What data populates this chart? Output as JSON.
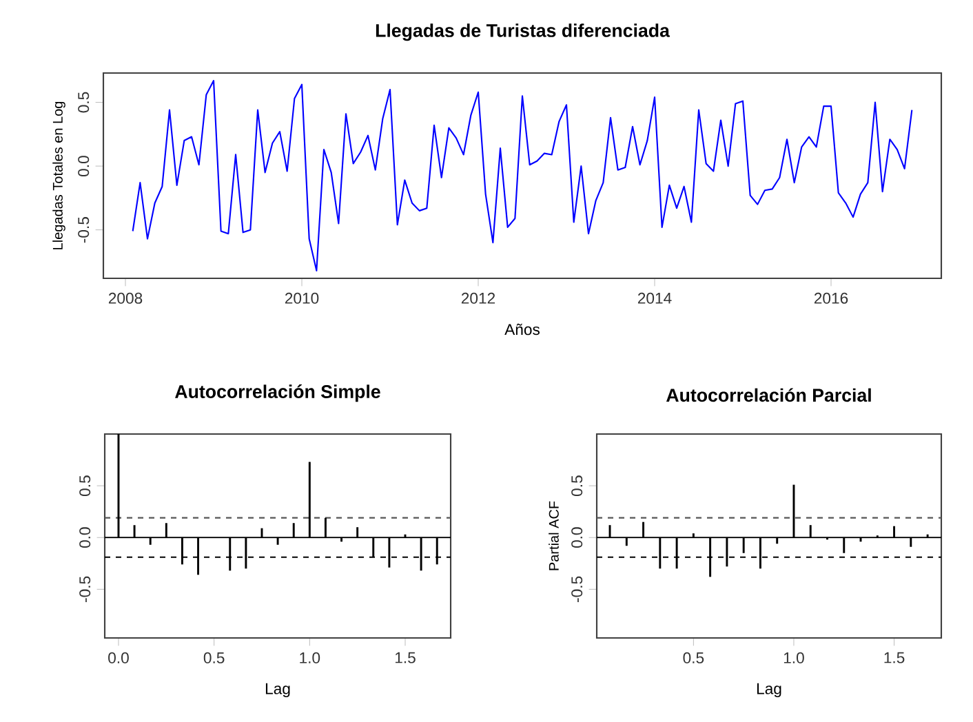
{
  "chart_data": [
    {
      "type": "line",
      "title": "Llegadas de Turistas diferenciada",
      "xlabel": "Años",
      "ylabel": "Llegadas Totales en Log",
      "color": "#0000ff",
      "x": [
        "2008-02",
        "2008-03",
        "2008-04",
        "2008-05",
        "2008-06",
        "2008-07",
        "2008-08",
        "2008-09",
        "2008-10",
        "2008-11",
        "2008-12",
        "2009-01",
        "2009-02",
        "2009-03",
        "2009-04",
        "2009-05",
        "2009-06",
        "2009-07",
        "2009-08",
        "2009-09",
        "2009-10",
        "2009-11",
        "2009-12",
        "2010-01",
        "2010-02",
        "2010-03",
        "2010-04",
        "2010-05",
        "2010-06",
        "2010-07",
        "2010-08",
        "2010-09",
        "2010-10",
        "2010-11",
        "2010-12",
        "2011-01",
        "2011-02",
        "2011-03",
        "2011-04",
        "2011-05",
        "2011-06",
        "2011-07",
        "2011-08",
        "2011-09",
        "2011-10",
        "2011-11",
        "2011-12",
        "2012-01",
        "2012-02",
        "2012-03",
        "2012-04",
        "2012-05",
        "2012-06",
        "2012-07",
        "2012-08",
        "2012-09",
        "2012-10",
        "2012-11",
        "2012-12",
        "2013-01",
        "2013-02",
        "2013-03",
        "2013-04",
        "2013-05",
        "2013-06",
        "2013-07",
        "2013-08",
        "2013-09",
        "2013-10",
        "2013-11",
        "2013-12",
        "2014-01",
        "2014-02",
        "2014-03",
        "2014-04",
        "2014-05",
        "2014-06",
        "2014-07",
        "2014-08",
        "2014-09",
        "2014-10",
        "2014-11",
        "2014-12",
        "2015-01",
        "2015-02",
        "2015-03",
        "2015-04",
        "2015-05",
        "2015-06",
        "2015-07",
        "2015-08",
        "2015-09",
        "2015-10",
        "2015-11",
        "2015-12",
        "2016-01",
        "2016-02",
        "2016-03",
        "2016-04",
        "2016-05",
        "2016-06",
        "2016-07",
        "2016-08",
        "2016-09",
        "2016-10",
        "2016-11",
        "2016-12"
      ],
      "values": [
        -0.51,
        -0.13,
        -0.57,
        -0.29,
        -0.16,
        0.44,
        -0.15,
        0.2,
        0.23,
        0.01,
        0.56,
        0.67,
        -0.51,
        -0.53,
        0.09,
        -0.52,
        -0.5,
        0.44,
        -0.05,
        0.18,
        0.27,
        -0.04,
        0.53,
        0.64,
        -0.57,
        -0.82,
        0.13,
        -0.05,
        -0.45,
        0.41,
        0.02,
        0.11,
        0.24,
        -0.03,
        0.37,
        0.6,
        -0.46,
        -0.11,
        -0.29,
        -0.35,
        -0.33,
        0.32,
        -0.09,
        0.3,
        0.22,
        0.09,
        0.4,
        0.58,
        -0.22,
        -0.6,
        0.14,
        -0.48,
        -0.41,
        0.55,
        0.01,
        0.04,
        0.1,
        0.09,
        0.35,
        0.48,
        -0.44,
        0.0,
        -0.53,
        -0.27,
        -0.13,
        0.38,
        -0.03,
        -0.01,
        0.31,
        0.01,
        0.2,
        0.54,
        -0.48,
        -0.15,
        -0.33,
        -0.16,
        -0.44,
        0.44,
        0.02,
        -0.04,
        0.36,
        0.0,
        0.49,
        0.51,
        -0.23,
        -0.3,
        -0.19,
        -0.18,
        -0.09,
        0.21,
        -0.13,
        0.15,
        0.23,
        0.15,
        0.47,
        0.47,
        -0.21,
        -0.29,
        -0.4,
        -0.22,
        -0.13,
        0.5,
        -0.2,
        0.21,
        0.13,
        -0.02,
        0.44
      ],
      "xlim": [
        "2007-10",
        "2017-04"
      ],
      "xticks": [
        "2008",
        "2010",
        "2012",
        "2014",
        "2016"
      ],
      "ylim": [
        -0.88,
        0.73
      ],
      "yticks": [
        {
          "value": -0.5,
          "label": "-0.5"
        },
        {
          "value": 0,
          "label": "0.0"
        },
        {
          "value": 0.5,
          "label": "0.5"
        }
      ]
    },
    {
      "type": "bar",
      "title": "Autocorrelación Simple",
      "xlabel": "Lag",
      "color": "#000000",
      "x": [
        0,
        0.0833,
        0.1667,
        0.25,
        0.3333,
        0.4167,
        0.5,
        0.5833,
        0.6667,
        0.75,
        0.8333,
        0.9167,
        1,
        1.0833,
        1.1667,
        1.25,
        1.3333,
        1.4167,
        1.5,
        1.5833,
        1.6667
      ],
      "values": [
        1.0,
        0.12,
        -0.07,
        0.14,
        -0.26,
        -0.36,
        0.0,
        -0.32,
        -0.3,
        0.09,
        -0.07,
        0.14,
        0.73,
        0.19,
        -0.04,
        0.1,
        -0.19,
        -0.29,
        0.03,
        -0.32,
        -0.26
      ],
      "xlim": [
        -0.072,
        1.738
      ],
      "xticks": [
        {
          "value": 0,
          "label": "0.0"
        },
        {
          "value": 0.5,
          "label": "0.5"
        },
        {
          "value": 1,
          "label": "1.0"
        },
        {
          "value": 1.5,
          "label": "1.5"
        }
      ],
      "ylim": [
        -0.97,
        1.0
      ],
      "yticks": [
        {
          "value": -0.5,
          "label": "-0.5"
        },
        {
          "value": 0,
          "label": "0.0"
        },
        {
          "value": 0.5,
          "label": "0.5"
        }
      ],
      "ref_lines": [
        {
          "axis": "y",
          "value": 0,
          "color": "#000000",
          "line_style": "solid"
        },
        {
          "axis": "y",
          "value": 0.19,
          "color": "#555555",
          "line_style": "dashed"
        },
        {
          "axis": "y",
          "value": -0.19,
          "color": "#000000",
          "line_style": "dashed"
        }
      ]
    },
    {
      "type": "bar",
      "title": "Autocorrelación Parcial",
      "xlabel": "Lag",
      "ylabel": "Partial ACF",
      "color": "#000000",
      "x": [
        0.0833,
        0.1667,
        0.25,
        0.3333,
        0.4167,
        0.5,
        0.5833,
        0.6667,
        0.75,
        0.8333,
        0.9167,
        1,
        1.0833,
        1.1667,
        1.25,
        1.3333,
        1.4167,
        1.5,
        1.5833,
        1.6667
      ],
      "values": [
        0.12,
        -0.08,
        0.15,
        -0.3,
        -0.3,
        0.04,
        -0.38,
        -0.28,
        -0.15,
        -0.3,
        -0.06,
        0.51,
        0.12,
        -0.02,
        -0.15,
        -0.04,
        0.02,
        0.11,
        -0.09,
        0.03
      ],
      "xlim": [
        0.018,
        1.735
      ],
      "xticks": [
        {
          "value": 0.5,
          "label": "0.5"
        },
        {
          "value": 1,
          "label": "1.0"
        },
        {
          "value": 1.5,
          "label": "1.5"
        }
      ],
      "ylim": [
        -0.97,
        1.0
      ],
      "yticks": [
        {
          "value": -0.5,
          "label": "-0.5"
        },
        {
          "value": 0,
          "label": "0.0"
        },
        {
          "value": 0.5,
          "label": "0.5"
        }
      ],
      "ref_lines": [
        {
          "axis": "y",
          "value": 0,
          "color": "#000000",
          "line_style": "solid"
        },
        {
          "axis": "y",
          "value": 0.19,
          "color": "#555555",
          "line_style": "dashed"
        },
        {
          "axis": "y",
          "value": -0.19,
          "color": "#000000",
          "line_style": "dashed"
        }
      ]
    }
  ]
}
